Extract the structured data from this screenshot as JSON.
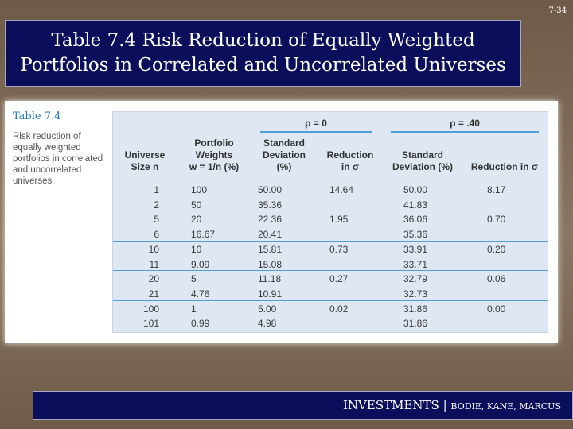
{
  "slide_number": "7-34",
  "title": {
    "line1": "Table 7.4 Risk Reduction of Equally Weighted",
    "line2": "Portfolios in Correlated and Uncorrelated Universes"
  },
  "caption": {
    "label": "Table 7.4",
    "description": "Risk reduction of equally weighted portfolios in correlated and uncorrelated universes"
  },
  "table": {
    "group_rho0": "ρ = 0",
    "group_rho40": "ρ = .40",
    "headers": {
      "universe_size_1": "Universe",
      "universe_size_2": "Size n",
      "weights_1": "Portfolio",
      "weights_2": "Weights",
      "weights_3": "w = 1/n (%)",
      "sd0_1": "Standard",
      "sd0_2": "Deviation",
      "sd0_3": "(%)",
      "red0_1": "Reduction",
      "red0_2": "in σ",
      "sd40_1": "Standard",
      "sd40_2": "Deviation (%)",
      "red40": "Reduction in σ"
    },
    "rows": [
      {
        "n": "1",
        "w": "100",
        "sd0": "50.00",
        "red0": "14.64",
        "sd40": "50.00",
        "red40": "8.17"
      },
      {
        "n": "2",
        "w": "50",
        "sd0": "35.36",
        "red0": "",
        "sd40": "41.83",
        "red40": ""
      },
      {
        "n": "5",
        "w": "20",
        "sd0": "22.36",
        "red0": "1.95",
        "sd40": "36.06",
        "red40": "0.70"
      },
      {
        "n": "6",
        "w": "16.67",
        "sd0": "20.41",
        "red0": "",
        "sd40": "35.36",
        "red40": ""
      },
      {
        "n": "10",
        "w": "10",
        "sd0": "15.81",
        "red0": "0.73",
        "sd40": "33.91",
        "red40": "0.20"
      },
      {
        "n": "11",
        "w": "9.09",
        "sd0": "15.08",
        "red0": "",
        "sd40": "33.71",
        "red40": ""
      },
      {
        "n": "20",
        "w": "5",
        "sd0": "11.18",
        "red0": "0.27",
        "sd40": "32.79",
        "red40": "0.06"
      },
      {
        "n": "21",
        "w": "4.76",
        "sd0": "10.91",
        "red0": "",
        "sd40": "32.73",
        "red40": ""
      },
      {
        "n": "100",
        "w": "1",
        "sd0": "5.00",
        "red0": "0.02",
        "sd40": "31.86",
        "red40": "0.00"
      },
      {
        "n": "101",
        "w": "0.99",
        "sd0": "4.98",
        "red0": "",
        "sd40": "31.86",
        "red40": ""
      }
    ]
  },
  "footer": {
    "main": "INVESTMENTS | ",
    "authors": "BODIE, KANE, MARCUS"
  }
}
